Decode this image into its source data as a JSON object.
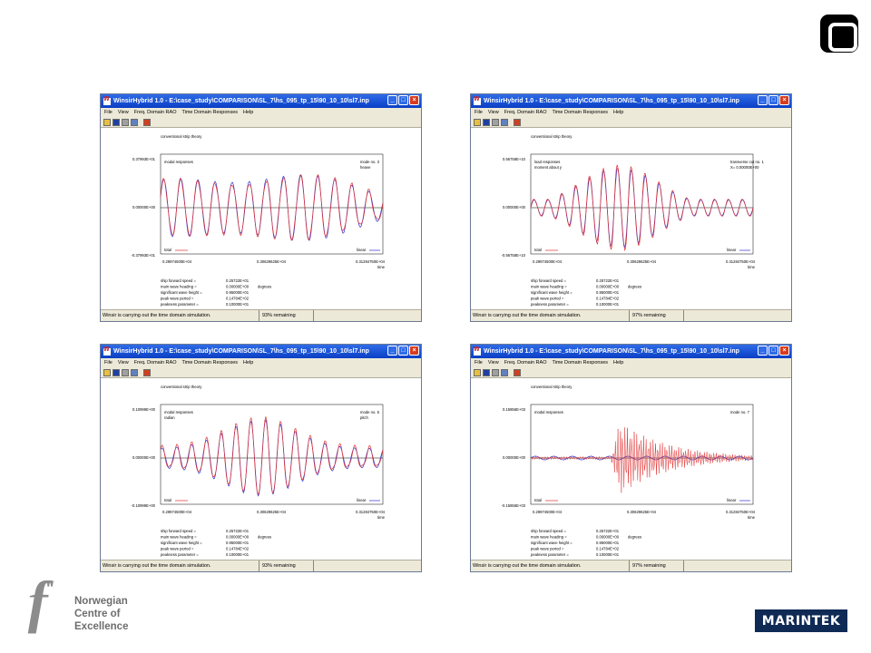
{
  "app": {
    "title": "WinsirHybrid 1.0 - E:\\case_study\\COMPARISON\\SL_7\\hs_095_tp_15\\90_10_10\\sl7.inp",
    "menu": [
      "File",
      "View",
      "Freq. Domain RAO",
      "Time Domain Responses",
      "Help"
    ],
    "status_text": "Winsir is carrying out the time domain simulation."
  },
  "common": {
    "theory": "conventional strip theory",
    "x_ticks": [
      "0.29974500E+04",
      "0.30629625E+04",
      "0.31284750E+04"
    ],
    "x_label": "time",
    "legend_total": "total",
    "legend_linear": "linear",
    "params": [
      {
        "label": "ship forward speed =",
        "value": "0.25722E+01",
        "unit": ""
      },
      {
        "label": "main wave heading =",
        "value": "0.00000E+00",
        "unit": "degrees"
      },
      {
        "label": "significant wave height =",
        "value": "0.95000E+01",
        "unit": ""
      },
      {
        "label": "peak wave period =",
        "value": "0.14784E+02",
        "unit": ""
      },
      {
        "label": "peakness parameter =",
        "value": "0.10000E+01",
        "unit": ""
      }
    ],
    "colors": {
      "total": "#e03030",
      "linear": "#3030d0"
    }
  },
  "windows": [
    {
      "heading": "modal responses",
      "subheading": "",
      "right1": "mode no.  3",
      "right2": "heave",
      "y_ticks": [
        "0.37993E+01",
        "0.00000E+00",
        "-0.37993E+01"
      ],
      "remaining": "93% remaining"
    },
    {
      "heading": "load responses",
      "subheading": "moment about y",
      "right1": "transverse cut no.  1",
      "right2": "X=  0.00000E+00",
      "y_ticks": [
        "0.56758E+10",
        "0.00000E+00",
        "-0.56758E+10"
      ],
      "remaining": "97% remaining"
    },
    {
      "heading": "modal responses",
      "subheading": "radian",
      "right1": "mode no.  5",
      "right2": "pitch",
      "y_ticks": [
        "0.10999E+00",
        "0.00000E+00",
        "-0.10999E+00"
      ],
      "remaining": "93% remaining"
    },
    {
      "heading": "modal responses",
      "subheading": "",
      "right1": "mode no.  7",
      "right2": "",
      "y_ticks": [
        "0.15856E+03",
        "0.00000E+00",
        "-0.15856E+03"
      ],
      "remaining": "97% remaining"
    }
  ],
  "branding": {
    "nce_lines": [
      "Norwegian",
      "Centre of",
      "Excellence"
    ],
    "marintek": "MARINTEK",
    "corner_icon": "camera-roll-icon"
  }
}
